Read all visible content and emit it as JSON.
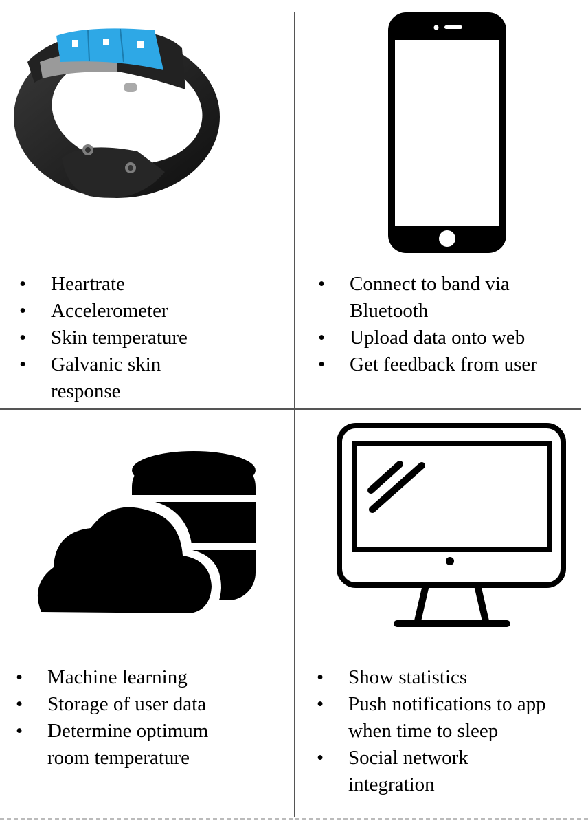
{
  "quadrants": {
    "band": {
      "icon": "fitness-band-icon",
      "items": [
        "Heartrate",
        "Accelerometer",
        "Skin temperature",
        "Galvanic skin response"
      ]
    },
    "phone": {
      "icon": "smartphone-icon",
      "items": [
        "Connect to band via Bluetooth",
        "Upload data onto web",
        "Get feedback from user"
      ]
    },
    "cloud": {
      "icon": "cloud-database-icon",
      "items": [
        "Machine learning",
        "Storage of user data",
        "Determine optimum room temperature"
      ]
    },
    "monitor": {
      "icon": "monitor-icon",
      "items": [
        "Show statistics",
        "Push notifications to app when time to sleep",
        "Social network integration"
      ]
    }
  },
  "colors": {
    "band_screen": "#2ea8e6",
    "band_body": "#1c1c1c",
    "divider": "#555555"
  }
}
